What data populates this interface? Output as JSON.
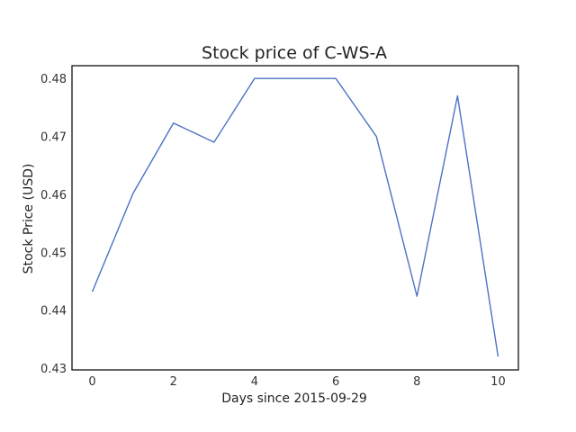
{
  "chart_data": {
    "type": "line",
    "title": "Stock price of C-WS-A",
    "xlabel": "Days since 2015-09-29",
    "ylabel": "Stock Price (USD)",
    "xlim": [
      -0.5,
      10.5
    ],
    "ylim": [
      0.4297,
      0.4822
    ],
    "xticks": [
      0,
      2,
      4,
      6,
      8,
      10
    ],
    "yticks": [
      0.43,
      0.44,
      0.45,
      0.46,
      0.47,
      0.48
    ],
    "x": [
      0,
      1,
      2,
      3,
      4,
      5,
      6,
      7,
      8,
      9,
      10
    ],
    "series": [
      {
        "color": "#4c72c4",
        "values": [
          0.4432,
          0.4601,
          0.4723,
          0.469,
          0.48,
          0.48,
          0.48,
          0.47,
          0.4424,
          0.477,
          0.432
        ]
      }
    ],
    "grid": false,
    "legend": "none"
  }
}
